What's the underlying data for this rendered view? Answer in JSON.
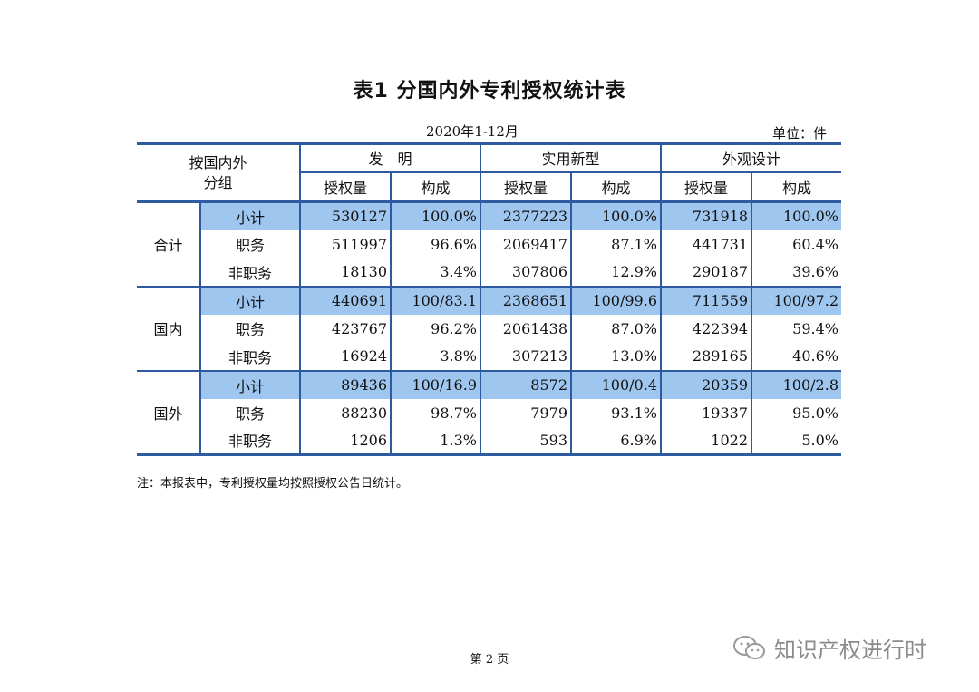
{
  "title": "表1  分国内外专利授权统计表",
  "period": "2020年1-12月",
  "unit": "单位：件",
  "header": {
    "corner": [
      "按国内外",
      "分组"
    ],
    "groups": [
      "发　明",
      "实用新型",
      "外观设计"
    ],
    "sub": [
      "授权量",
      "构成"
    ]
  },
  "sections": [
    {
      "name": "合计",
      "rows": [
        {
          "label": "小计",
          "cells": [
            "530127",
            "100.0%",
            "2377223",
            "100.0%",
            "731918",
            "100.0%"
          ]
        },
        {
          "label": "职务",
          "cells": [
            "511997",
            "96.6%",
            "2069417",
            "87.1%",
            "441731",
            "60.4%"
          ]
        },
        {
          "label": "非职务",
          "cells": [
            "18130",
            "3.4%",
            "307806",
            "12.9%",
            "290187",
            "39.6%"
          ]
        }
      ]
    },
    {
      "name": "国内",
      "rows": [
        {
          "label": "小计",
          "cells": [
            "440691",
            "100/83.1",
            "2368651",
            "100/99.6",
            "711559",
            "100/97.2"
          ]
        },
        {
          "label": "职务",
          "cells": [
            "423767",
            "96.2%",
            "2061438",
            "87.0%",
            "422394",
            "59.4%"
          ]
        },
        {
          "label": "非职务",
          "cells": [
            "16924",
            "3.8%",
            "307213",
            "13.0%",
            "289165",
            "40.6%"
          ]
        }
      ]
    },
    {
      "name": "国外",
      "rows": [
        {
          "label": "小计",
          "cells": [
            "89436",
            "100/16.9",
            "8572",
            "100/0.4",
            "20359",
            "100/2.8"
          ]
        },
        {
          "label": "职务",
          "cells": [
            "88230",
            "98.7%",
            "7979",
            "93.1%",
            "19337",
            "95.0%"
          ]
        },
        {
          "label": "非职务",
          "cells": [
            "1206",
            "1.3%",
            "593",
            "6.9%",
            "1022",
            "5.0%"
          ]
        }
      ]
    }
  ],
  "note": "注：本报表中，专利授权量均按照授权公告日统计。",
  "page_number": "第 2 页",
  "watermark": "知识产权进行时",
  "colors": {
    "rule": "#2e5aa0",
    "highlight": "#9fc6ef"
  }
}
